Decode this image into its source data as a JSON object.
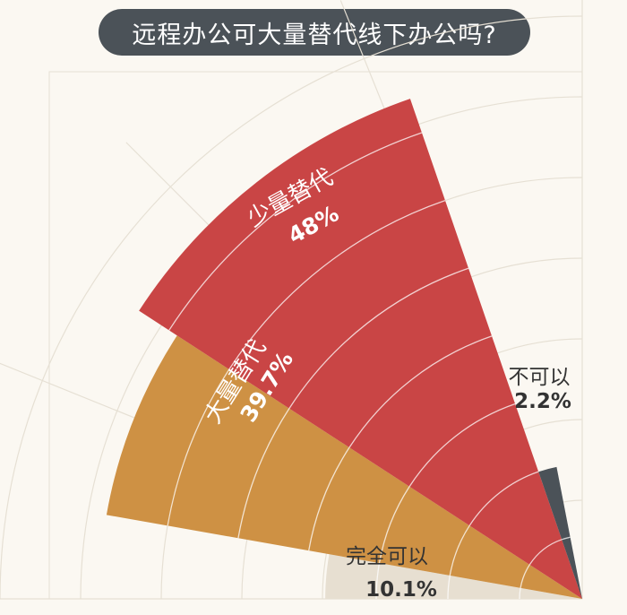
{
  "title": "远程办公可大量替代线下办公吗?",
  "chart_data": {
    "type": "pie",
    "categories": [
      "完全可以",
      "大量替代",
      "少量替代",
      "不可以"
    ],
    "values": [
      10.1,
      39.7,
      48,
      2.2
    ],
    "value_labels": [
      "10.1%",
      "39.7%",
      "48%",
      "2.2%"
    ],
    "colors": [
      "#e7dfd1",
      "#ce9144",
      "#c94545",
      "#4b5258"
    ],
    "grid": true
  }
}
